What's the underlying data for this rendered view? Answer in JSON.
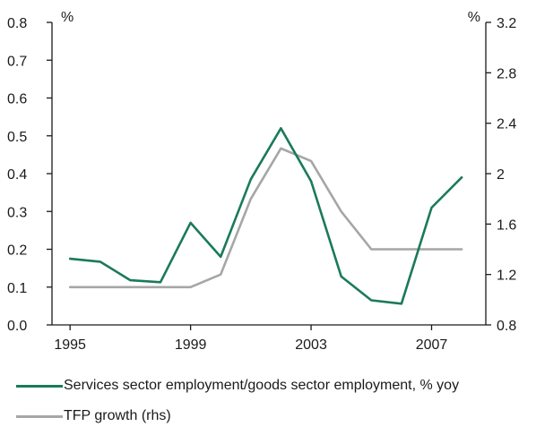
{
  "chart_data": {
    "type": "line",
    "x": [
      1995,
      1996,
      1997,
      1998,
      1999,
      2000,
      2001,
      2002,
      2003,
      2004,
      2005,
      2006,
      2007,
      2008
    ],
    "x_ticks": [
      1995,
      1999,
      2003,
      2007
    ],
    "y_left": {
      "unit": "%",
      "ylim": [
        0,
        0.8
      ],
      "ticks": [
        "0.0",
        "0.1",
        "0.2",
        "0.3",
        "0.4",
        "0.5",
        "0.6",
        "0.7",
        "0.8"
      ]
    },
    "y_right": {
      "unit": "%",
      "ylim": [
        0.8,
        3.2
      ],
      "ticks": [
        "0.8",
        "1.2",
        "1.6",
        "2",
        "2.4",
        "2.8",
        "3.2"
      ]
    },
    "series": [
      {
        "name": "Services sector employment/goods sector employment, % yoy",
        "axis": "left",
        "color": "#1a7a5c",
        "values": [
          0.175,
          0.167,
          0.118,
          0.113,
          0.27,
          0.18,
          0.385,
          0.52,
          0.38,
          0.128,
          0.065,
          0.056,
          0.31,
          0.39
        ]
      },
      {
        "name": "TFP growth (rhs)",
        "axis": "right",
        "color": "#a6a6a6",
        "values": [
          1.1,
          1.1,
          1.1,
          1.1,
          1.1,
          1.2,
          1.8,
          2.2,
          2.1,
          1.7,
          1.4,
          1.4,
          1.4,
          1.4
        ]
      }
    ],
    "grid": false,
    "legend_position": "bottom-left"
  }
}
